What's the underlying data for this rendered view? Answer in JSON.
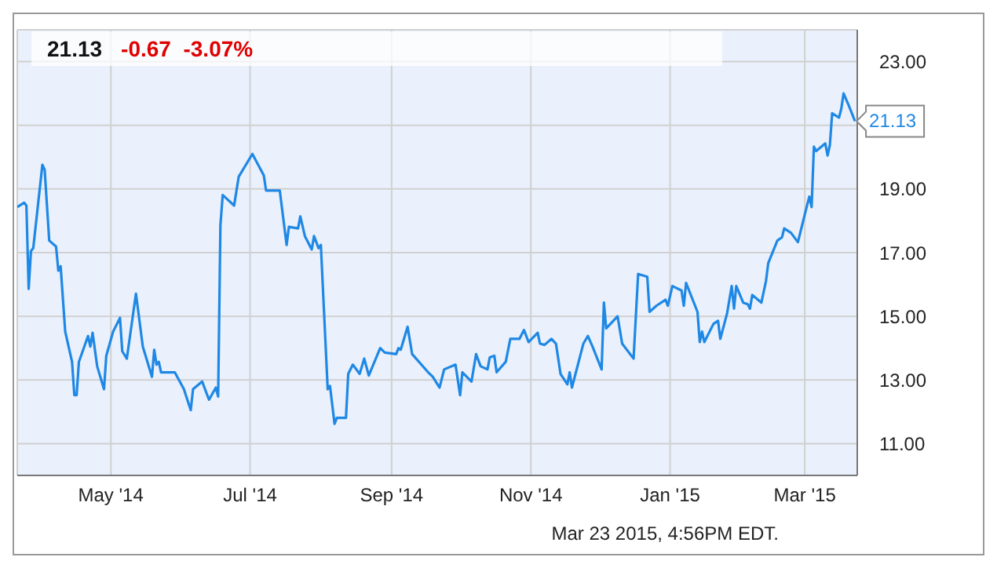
{
  "chart_data": {
    "type": "line",
    "title": "21.13",
    "subtitle": "-0.67  -3.07%",
    "x": [
      "2014-03-21",
      "2014-03-24",
      "2014-03-25",
      "2014-03-26",
      "2014-03-27",
      "2014-03-28",
      "2014-04-01",
      "2014-04-02",
      "2014-04-04",
      "2014-04-07",
      "2014-04-08",
      "2014-04-09",
      "2014-04-11",
      "2014-04-14",
      "2014-04-15",
      "2014-04-16",
      "2014-04-17",
      "2014-04-21",
      "2014-04-22",
      "2014-04-23",
      "2014-04-25",
      "2014-04-28",
      "2014-04-29",
      "2014-05-02",
      "2014-05-05",
      "2014-05-06",
      "2014-05-08",
      "2014-05-12",
      "2014-05-15",
      "2014-05-19",
      "2014-05-20",
      "2014-05-21",
      "2014-05-22",
      "2014-05-23",
      "2014-05-29",
      "2014-06-02",
      "2014-06-05",
      "2014-06-06",
      "2014-06-10",
      "2014-06-13",
      "2014-06-16",
      "2014-06-17",
      "2014-06-18",
      "2014-06-19",
      "2014-06-24",
      "2014-06-26",
      "2014-07-02",
      "2014-07-07",
      "2014-07-08",
      "2014-07-10",
      "2014-07-14",
      "2014-07-17",
      "2014-07-18",
      "2014-07-22",
      "2014-07-23",
      "2014-07-25",
      "2014-07-28",
      "2014-07-29",
      "2014-07-31",
      "2014-08-01",
      "2014-08-04",
      "2014-08-05",
      "2014-08-07",
      "2014-08-08",
      "2014-08-12",
      "2014-08-13",
      "2014-08-15",
      "2014-08-18",
      "2014-08-20",
      "2014-08-22",
      "2014-08-27",
      "2014-08-29",
      "2014-09-03",
      "2014-09-04",
      "2014-09-05",
      "2014-09-08",
      "2014-09-10",
      "2014-09-17",
      "2014-09-19",
      "2014-09-22",
      "2014-09-24",
      "2014-09-29",
      "2014-10-01",
      "2014-10-02",
      "2014-10-06",
      "2014-10-08",
      "2014-10-10",
      "2014-10-13",
      "2014-10-14",
      "2014-10-16",
      "2014-10-17",
      "2014-10-21",
      "2014-10-23",
      "2014-10-27",
      "2014-10-29",
      "2014-10-31",
      "2014-11-04",
      "2014-11-05",
      "2014-11-07",
      "2014-11-10",
      "2014-11-12",
      "2014-11-14",
      "2014-11-17",
      "2014-11-18",
      "2014-11-19",
      "2014-11-24",
      "2014-11-26",
      "2014-11-28",
      "2014-12-02",
      "2014-12-03",
      "2014-12-04",
      "2014-12-09",
      "2014-12-11",
      "2014-12-16",
      "2014-12-18",
      "2014-12-22",
      "2014-12-23",
      "2014-12-26",
      "2014-12-30",
      "2014-12-31",
      "2015-01-02",
      "2015-01-06",
      "2015-01-07",
      "2015-01-08",
      "2015-01-13",
      "2015-01-14",
      "2015-01-15",
      "2015-01-16",
      "2015-01-20",
      "2015-01-22",
      "2015-01-23",
      "2015-01-26",
      "2015-01-28",
      "2015-01-29",
      "2015-01-30",
      "2015-02-02",
      "2015-02-04",
      "2015-02-05",
      "2015-02-06",
      "2015-02-10",
      "2015-02-12",
      "2015-02-13",
      "2015-02-17",
      "2015-02-19",
      "2015-02-20",
      "2015-02-23",
      "2015-02-26",
      "2015-03-02",
      "2015-03-03",
      "2015-03-04",
      "2015-03-05",
      "2015-03-06",
      "2015-03-10",
      "2015-03-11",
      "2015-03-12",
      "2015-03-13",
      "2015-03-16",
      "2015-03-17",
      "2015-03-18",
      "2015-03-20",
      "2015-03-23"
    ],
    "series": [
      {
        "color": "#1f88e5",
        "values": [
          18.43,
          18.57,
          18.48,
          15.86,
          17.05,
          17.14,
          19.76,
          19.6,
          17.38,
          17.19,
          16.43,
          16.57,
          14.52,
          13.57,
          12.52,
          12.52,
          13.57,
          14.38,
          14.05,
          14.48,
          13.43,
          12.71,
          13.76,
          14.52,
          14.95,
          13.9,
          13.67,
          15.71,
          14.05,
          13.1,
          13.95,
          13.48,
          13.57,
          13.24,
          13.24,
          12.71,
          12.05,
          12.71,
          12.95,
          12.38,
          12.76,
          12.48,
          17.86,
          18.81,
          18.48,
          19.38,
          20.1,
          19.43,
          18.95,
          18.95,
          18.95,
          17.24,
          17.81,
          17.76,
          18.14,
          17.52,
          17.1,
          17.52,
          17.14,
          17.24,
          12.71,
          12.81,
          11.62,
          11.81,
          11.81,
          13.19,
          13.48,
          13.19,
          13.67,
          13.14,
          14.0,
          13.86,
          13.81,
          14.0,
          13.95,
          14.67,
          13.81,
          13.24,
          13.1,
          12.76,
          13.33,
          13.48,
          12.52,
          13.24,
          12.95,
          13.81,
          13.43,
          13.33,
          13.71,
          13.76,
          13.24,
          13.57,
          14.29,
          14.29,
          14.57,
          14.19,
          14.48,
          14.14,
          14.1,
          14.29,
          14.14,
          13.19,
          12.86,
          13.24,
          12.76,
          14.14,
          14.38,
          14.05,
          13.33,
          15.43,
          14.62,
          15.0,
          14.14,
          13.67,
          16.33,
          16.24,
          15.14,
          15.33,
          15.52,
          15.33,
          15.95,
          15.81,
          15.33,
          16.05,
          15.14,
          14.19,
          14.52,
          14.19,
          14.76,
          14.86,
          14.29,
          15.1,
          15.95,
          15.24,
          15.95,
          15.43,
          15.38,
          15.24,
          15.67,
          15.43,
          16.1,
          16.67,
          17.38,
          17.48,
          17.76,
          17.62,
          17.33,
          18.48,
          18.76,
          18.43,
          20.33,
          20.19,
          20.43,
          20.05,
          20.38,
          21.38,
          21.24,
          21.52,
          22.0,
          21.67,
          21.13
        ]
      }
    ],
    "xlim": [
      "2014-03-21",
      "2015-03-24"
    ],
    "xticks": [
      {
        "value": "2014-05-01",
        "label": "May '14"
      },
      {
        "value": "2014-07-01",
        "label": "Jul '14"
      },
      {
        "value": "2014-09-01",
        "label": "Sep '14"
      },
      {
        "value": "2014-11-01",
        "label": "Nov '14"
      },
      {
        "value": "2015-01-01",
        "label": "Jan '15"
      },
      {
        "value": "2015-03-01",
        "label": "Mar '15"
      }
    ],
    "ylim": [
      10,
      24
    ],
    "yticks": [
      {
        "value": 11,
        "label": "11.00"
      },
      {
        "value": 13,
        "label": "13.00"
      },
      {
        "value": 15,
        "label": "15.00"
      },
      {
        "value": 17,
        "label": "17.00"
      },
      {
        "value": 19,
        "label": "19.00"
      },
      {
        "value": 21,
        "label": null
      },
      {
        "value": 23,
        "label": "23.00"
      }
    ],
    "grid": true,
    "annotations": [
      {
        "text": "21.13",
        "x": "2015-03-23",
        "y": 21.13
      },
      "Mar 23 2015, 4:56PM EDT."
    ]
  }
}
